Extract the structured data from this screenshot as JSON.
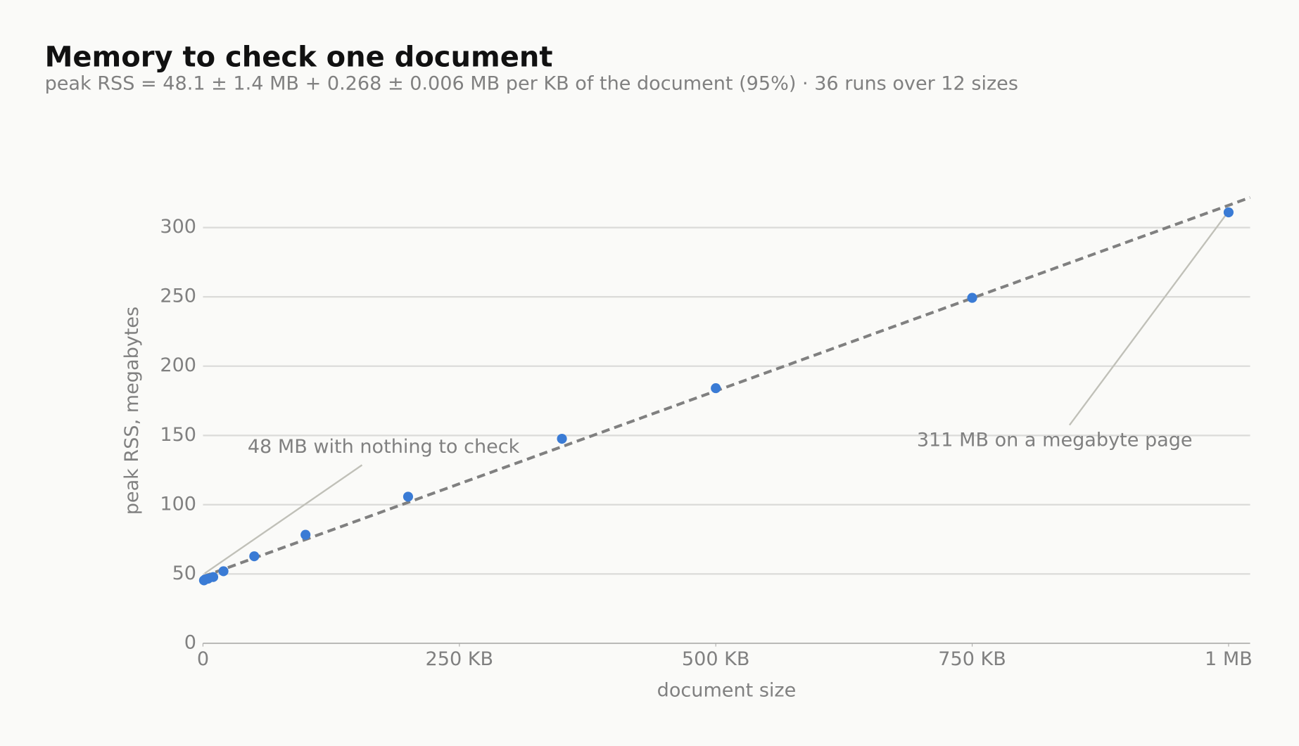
{
  "chart_data": {
    "type": "scatter",
    "title": "Memory to check one document",
    "subtitle": "peak RSS = 48.1 ± 1.4 MB + 0.268 ± 0.006 MB per KB of the document (95%) · 36 runs over 12 sizes",
    "x_label": "document size",
    "y_label": "peak RSS, megabytes",
    "xlim": [
      0,
      1021
    ],
    "ylim": [
      0,
      322
    ],
    "xticks": [
      0,
      {
        "value": 250,
        "label": "250 KB"
      },
      {
        "value": 500,
        "label": "500 KB"
      },
      {
        "value": 750,
        "label": "750 KB"
      },
      {
        "value": 1000,
        "label": "1 MB"
      }
    ],
    "yticks": [
      0,
      50,
      100,
      150,
      200,
      250,
      300
    ],
    "grid": true,
    "series": [
      {
        "type": "scatter",
        "color": "#3a7bd5",
        "x": [
          1,
          2,
          5,
          10,
          20,
          50,
          100,
          200,
          350,
          500,
          750,
          1000
        ],
        "values": [
          45.4,
          46,
          46.6,
          47.8,
          52,
          62.8,
          78.3,
          105.8,
          147.6,
          184.1,
          249.3,
          311
        ]
      },
      {
        "type": "line",
        "color": "#808080",
        "dashed": true,
        "x": [
          0,
          1021
        ],
        "values": [
          48.1,
          321.7
        ]
      }
    ],
    "annotations": [
      {
        "text": "48 MB with nothing to check",
        "x": 0,
        "y": 48
      },
      {
        "text": "311 MB on a megabyte page",
        "x": 1000,
        "y": 311
      }
    ]
  }
}
